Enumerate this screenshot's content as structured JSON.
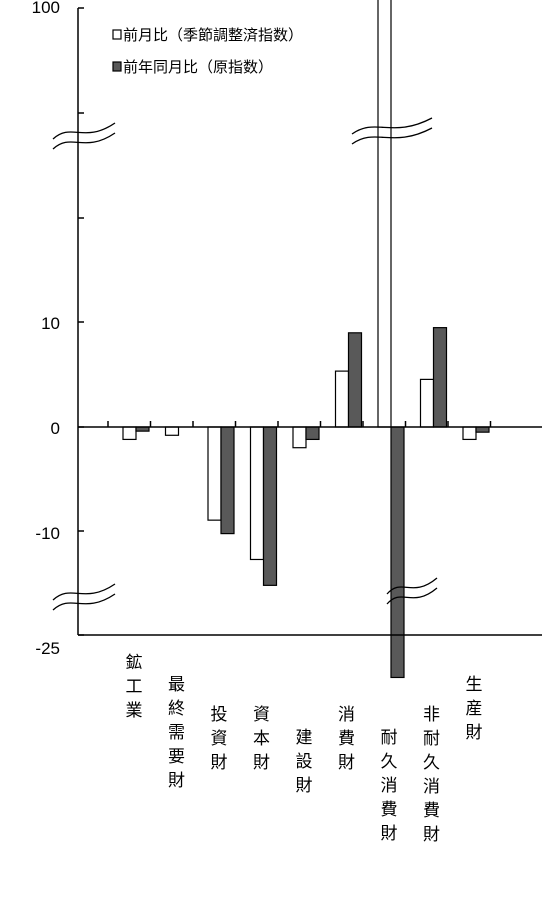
{
  "chart_data": {
    "type": "bar",
    "categories": [
      "鉱工業",
      "最終需要財",
      "投資財",
      "資本財",
      "建設財",
      "消費財",
      "耐久消費財",
      "非耐久消費財",
      "生産財"
    ],
    "series": [
      {
        "name": "前月比（季節調整済指数）",
        "values": [
          -1.2,
          -0.8,
          -9.0,
          -12.8,
          -2.0,
          5.4,
          98.5,
          4.6,
          -1.2
        ],
        "color": "#ffffff"
      },
      {
        "name": "前年同月比（原指数）",
        "values": [
          -0.4,
          0.0,
          -10.3,
          -15.3,
          -1.2,
          9.1,
          -24.2,
          9.6,
          -0.5
        ],
        "color": "#595959"
      }
    ],
    "y_tick_labels": [
      "100",
      "10",
      "0",
      "-10",
      "-25"
    ],
    "y_ticks": [
      100,
      10,
      0,
      -10,
      -25
    ],
    "ylim": [
      -25,
      100
    ],
    "axis_breaks": "between 10 and 100, between -10 and -25",
    "legend_position": "top-left",
    "grid": false
  }
}
